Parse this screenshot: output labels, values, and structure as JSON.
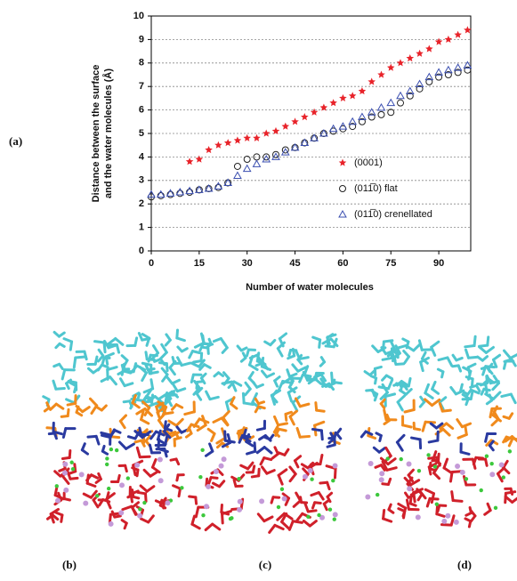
{
  "chart_data": {
    "type": "scatter",
    "xlabel": "Number of water molecules",
    "ylabel_lines": [
      "Distance between the surface",
      "and the water molecules (Å)"
    ],
    "x": [
      0,
      3,
      6,
      9,
      12,
      15,
      18,
      21,
      24,
      27,
      30,
      33,
      36,
      39,
      42,
      45,
      48,
      51,
      54,
      57,
      60,
      63,
      66,
      69,
      72,
      75,
      78,
      81,
      84,
      87,
      90,
      93,
      96,
      99
    ],
    "series": [
      {
        "name": "(0001)",
        "color": "#e8232a",
        "marker": "star",
        "values": [
          null,
          null,
          null,
          null,
          3.8,
          3.9,
          4.3,
          4.5,
          4.6,
          4.7,
          4.8,
          4.8,
          5.0,
          5.1,
          5.3,
          5.5,
          5.7,
          5.9,
          6.1,
          6.3,
          6.5,
          6.6,
          6.8,
          7.2,
          7.5,
          7.8,
          8.0,
          8.2,
          8.4,
          8.6,
          8.9,
          9.0,
          9.2,
          9.4
        ]
      },
      {
        "name": "(011̅0) flat",
        "color": "#222222",
        "marker": "circle",
        "values": [
          2.3,
          2.35,
          2.4,
          2.45,
          2.5,
          2.6,
          2.65,
          2.7,
          2.9,
          3.6,
          3.9,
          4.0,
          4.0,
          4.1,
          4.3,
          4.4,
          4.6,
          4.8,
          5.0,
          5.1,
          5.2,
          5.3,
          5.5,
          5.7,
          5.8,
          5.9,
          6.3,
          6.6,
          6.9,
          7.2,
          7.4,
          7.5,
          7.6,
          7.7
        ]
      },
      {
        "name": "(011̅0) crenellated",
        "color": "#3b4fb0",
        "marker": "triangle",
        "values": [
          2.4,
          2.4,
          2.45,
          2.5,
          2.55,
          2.6,
          2.65,
          2.75,
          2.9,
          3.2,
          3.5,
          3.7,
          3.9,
          4.0,
          4.2,
          4.4,
          4.6,
          4.8,
          5.0,
          5.2,
          5.3,
          5.5,
          5.7,
          5.9,
          6.1,
          6.3,
          6.6,
          6.8,
          7.1,
          7.4,
          7.6,
          7.7,
          7.8,
          7.9
        ]
      }
    ],
    "xlim": [
      0,
      100
    ],
    "ylim": [
      0,
      10
    ],
    "xticks": [
      0,
      15,
      30,
      45,
      60,
      75,
      90
    ],
    "yticks": [
      0,
      1,
      2,
      3,
      4,
      5,
      6,
      7,
      8,
      9,
      10
    ],
    "grid": true,
    "panel_labels": [
      "(a)",
      "(b)",
      "(c)",
      "(d)"
    ]
  }
}
